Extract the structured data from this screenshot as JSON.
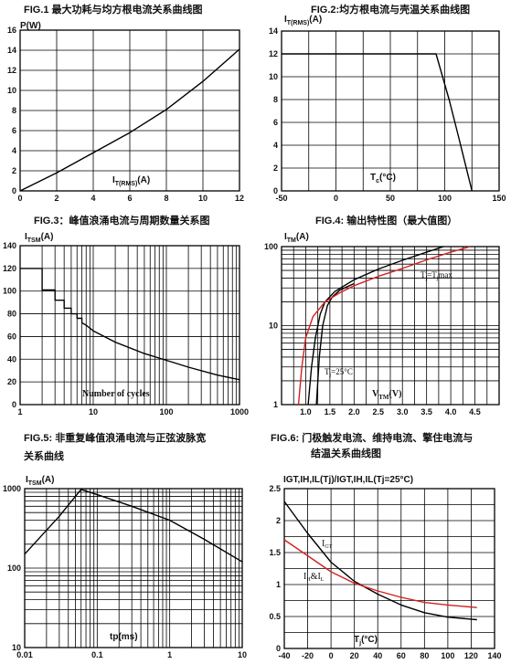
{
  "chart_data": [
    {
      "id": "fig1",
      "type": "line",
      "title": "FIG.1  最大功耗与均方根电流关系曲线图",
      "ylabel": "P(W)",
      "xlabel_main": "I",
      "xlabel_sub": "T(RMS)",
      "xlabel_tail": "(A)",
      "xlim": [
        0,
        12
      ],
      "ylim": [
        0,
        16
      ],
      "xticks": [
        0,
        2,
        4,
        6,
        8,
        10,
        12
      ],
      "yticks": [
        0,
        2,
        4,
        6,
        8,
        10,
        12,
        14,
        16
      ],
      "series": [
        {
          "x": [
            0,
            2,
            4,
            6,
            8,
            10,
            12
          ],
          "y": [
            0,
            1.8,
            3.8,
            5.8,
            8.1,
            10.9,
            14.1
          ]
        }
      ]
    },
    {
      "id": "fig2",
      "type": "line",
      "title": "FIG.2:均方根电流与壳温关系曲线图",
      "ylabel_main": "I",
      "ylabel_sub": "T(RMS)",
      "ylabel_tail": "(A)",
      "xlabel_main": "T",
      "xlabel_sub": "c",
      "xlabel_tail": "(°C)",
      "xlim": [
        -50,
        150
      ],
      "ylim": [
        0,
        14
      ],
      "xticks": [
        -50,
        0,
        50,
        100,
        150
      ],
      "yticks": [
        0,
        2,
        4,
        6,
        8,
        10,
        12,
        14
      ],
      "series": [
        {
          "x": [
            -50,
            92,
            104,
            112,
            125
          ],
          "y": [
            12,
            12,
            8,
            5,
            0
          ]
        }
      ]
    },
    {
      "id": "fig3",
      "type": "line",
      "title": "FIG.3：峰值浪涌电流与周期数量关系图",
      "ylabel_main": "I",
      "ylabel_sub": "TSM",
      "ylabel_tail": "(A)",
      "xlabel": "Number of cycles",
      "xscale": "log",
      "xlim": [
        1,
        1000
      ],
      "ylim": [
        0,
        140
      ],
      "xticks": [
        1,
        10,
        100,
        1000
      ],
      "yticks": [
        0,
        20,
        40,
        60,
        80,
        100,
        120,
        140
      ],
      "series": [
        {
          "x": [
            1,
            2,
            2,
            3,
            3,
            4,
            4,
            5,
            5,
            6,
            6,
            7,
            7,
            8,
            10,
            20,
            50,
            100,
            200,
            500,
            1000
          ],
          "y": [
            120,
            120,
            101,
            101,
            92,
            92,
            85,
            85,
            80,
            80,
            76,
            76,
            72,
            70,
            65,
            55,
            45,
            39,
            33,
            26,
            22
          ]
        }
      ]
    },
    {
      "id": "fig4",
      "type": "line",
      "title": "FIG.4:  输出特性图（最大值图）",
      "ylabel_main": "I",
      "ylabel_sub": "TM",
      "ylabel_tail": "(A)",
      "xlabel_main": "V",
      "xlabel_sub": "TM",
      "xlabel_tail": "(V)",
      "yscale": "log",
      "xlim": [
        0.5,
        5.0
      ],
      "ylim": [
        1,
        100
      ],
      "xticks": [
        1.0,
        1.5,
        2.0,
        2.5,
        3.0,
        3.5,
        4.0,
        4.5
      ],
      "xtick_labels": [
        "1.0",
        "1.5",
        "2.0",
        "2.5",
        "3.0",
        "3.5",
        "4.0",
        "4.5"
      ],
      "yticks": [
        1,
        10,
        100
      ],
      "annotations": [
        {
          "main": "T",
          "sub": "j",
          "tail": "=25°C"
        },
        {
          "main": "T",
          "sub": "j",
          "mid": "=T",
          "sub2": "j",
          "tail": "max"
        }
      ],
      "series": [
        {
          "name": "Tj=25°C",
          "color": "#000000",
          "x": [
            1.05,
            1.12,
            1.2,
            1.3,
            1.4,
            1.6,
            2.0,
            2.5,
            3.0,
            3.5,
            3.85
          ],
          "y": [
            1,
            3,
            7,
            14,
            20,
            27,
            38,
            52,
            67,
            85,
            100
          ]
        },
        {
          "name": "Tj=25°C",
          "color": "#000000",
          "x": [
            1.22,
            1.28,
            1.35,
            1.45,
            1.55,
            1.7,
            2.0
          ],
          "y": [
            1,
            4,
            10,
            18,
            23,
            28,
            34
          ]
        },
        {
          "name": "Tj=Tjmax",
          "color": "#d42020",
          "x": [
            0.85,
            0.92,
            1.0,
            1.15,
            1.4,
            1.7,
            2.0,
            2.5,
            3.0,
            3.5,
            4.0,
            4.4
          ],
          "y": [
            1,
            3,
            7,
            13,
            20,
            26,
            32,
            42,
            53,
            68,
            85,
            100
          ]
        }
      ]
    },
    {
      "id": "fig5",
      "type": "line",
      "title_line1": "FIG.5:  非重复峰值浪涌电流与正弦波脉宽",
      "title_line2": "关系曲线",
      "ylabel_main": "I",
      "ylabel_sub": "TSM",
      "ylabel_tail": "(A)",
      "xlabel": "tp(ms)",
      "xscale": "log",
      "yscale": "log",
      "xlim": [
        0.01,
        10
      ],
      "ylim": [
        10,
        1000
      ],
      "xticks": [
        0.01,
        0.1,
        1,
        10
      ],
      "xtick_labels": [
        "0.01",
        "0.1",
        "1",
        "10"
      ],
      "yticks": [
        10,
        100,
        1000
      ],
      "series": [
        {
          "x": [
            0.01,
            0.03,
            0.06,
            0.1,
            0.3,
            1,
            3,
            10
          ],
          "y": [
            150,
            450,
            980,
            840,
            600,
            400,
            230,
            120
          ]
        }
      ]
    },
    {
      "id": "fig6",
      "type": "line",
      "title_line1": "FIG.6:  门极触发电流、维持电流、擎住电流与",
      "title_line2": "结温关系曲线图",
      "ylabel_text": "I",
      "ylabel_full": "IGT,IH,IL(Tj)/IGT,IH,IL(Tj=25°C)",
      "xlabel_main": "T",
      "xlabel_sub": "j",
      "xlabel_tail": "(°C)",
      "xlim": [
        -40,
        140
      ],
      "ylim": [
        0,
        2.5
      ],
      "xticks": [
        -40,
        -20,
        0,
        20,
        40,
        60,
        80,
        100,
        120,
        140
      ],
      "yticks": [
        0,
        0.5,
        1.0,
        1.5,
        2.0,
        2.5
      ],
      "ytick_labels": [
        "0",
        "0.5",
        "1",
        "1.5",
        "2",
        "2.5"
      ],
      "annotations": [
        {
          "main": "I",
          "sub": "GT"
        },
        {
          "main": "I",
          "sub": "H",
          "mid": "&I",
          "sub2": "L"
        }
      ],
      "series": [
        {
          "name": "IGT",
          "color": "#000000",
          "x": [
            -40,
            -20,
            0,
            20,
            40,
            60,
            80,
            100,
            125
          ],
          "y": [
            2.3,
            1.8,
            1.35,
            1.05,
            0.85,
            0.68,
            0.56,
            0.49,
            0.45
          ]
        },
        {
          "name": "IH&IL",
          "color": "#d42020",
          "x": [
            -40,
            -20,
            0,
            20,
            40,
            60,
            80,
            100,
            125
          ],
          "y": [
            1.7,
            1.45,
            1.2,
            1.02,
            0.9,
            0.8,
            0.72,
            0.68,
            0.64
          ]
        }
      ]
    }
  ]
}
